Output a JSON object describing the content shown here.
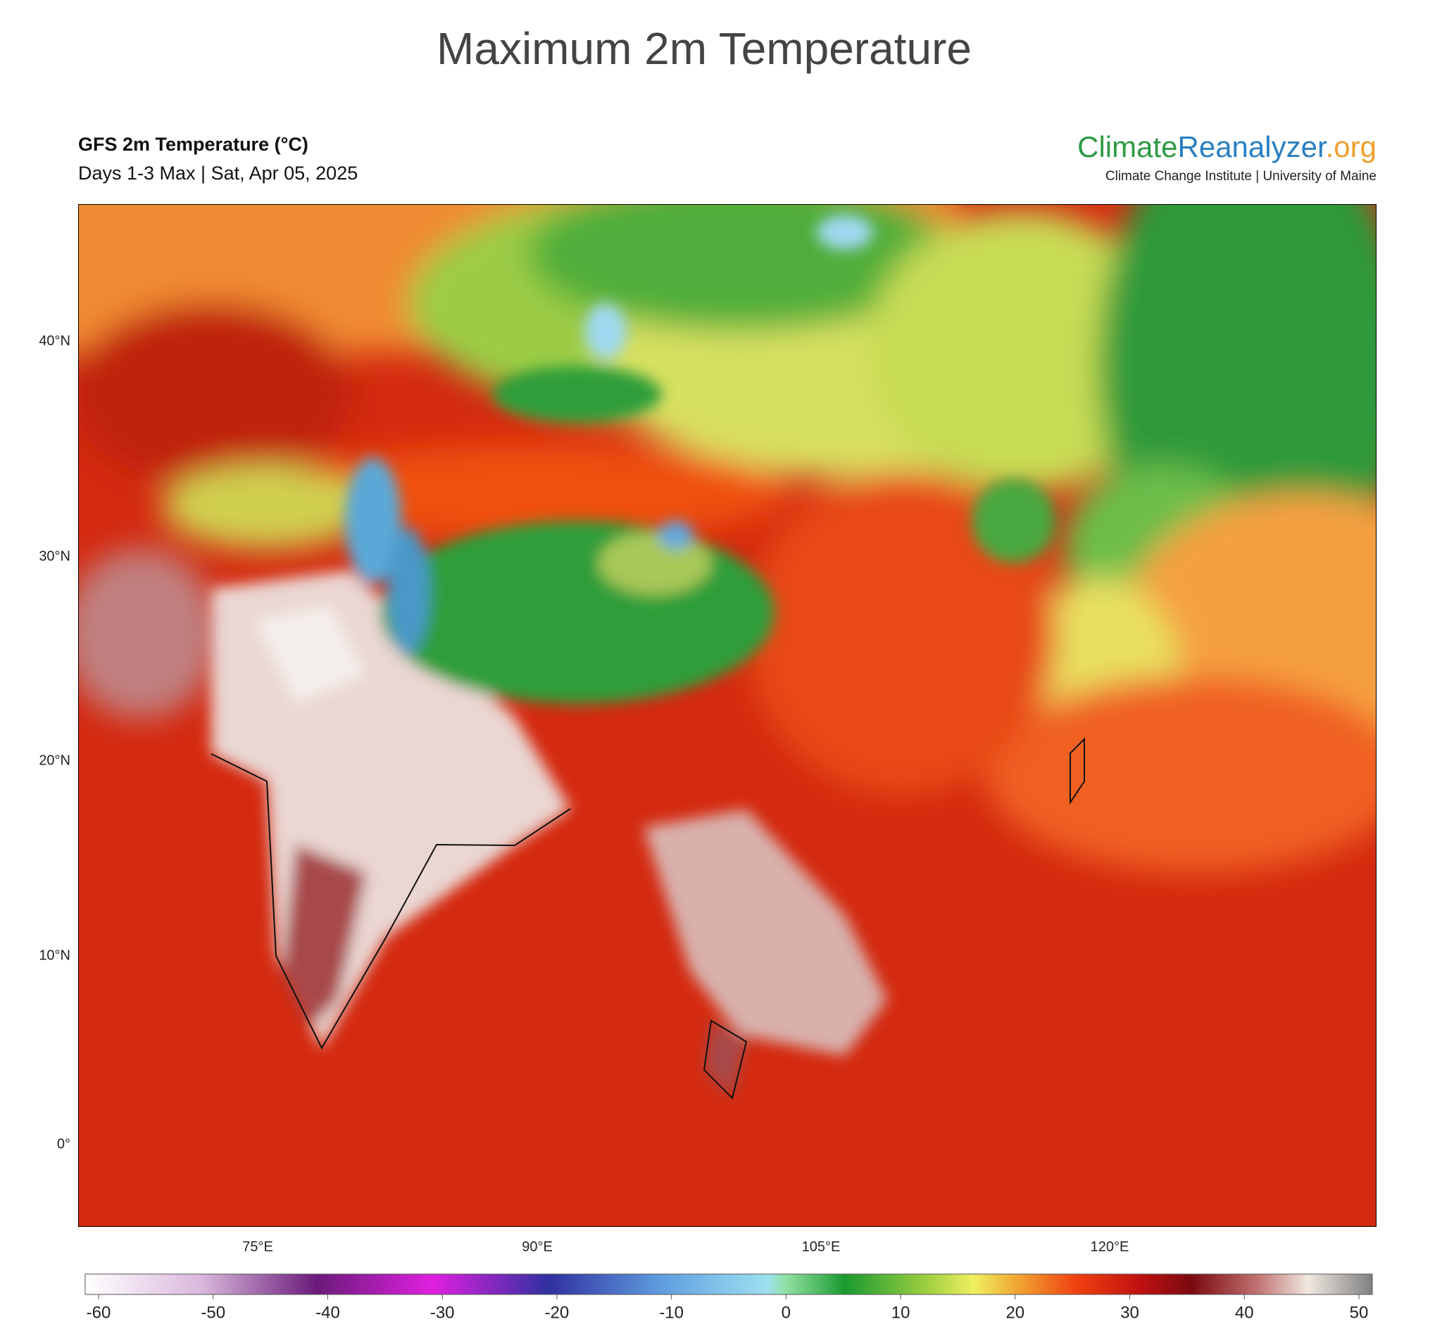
{
  "title": "Maximum 2m Temperature",
  "header": {
    "product": "GFS 2m Temperature (°C)",
    "subtitle": "Days 1-3 Max | Sat, Apr 05, 2025"
  },
  "logo": {
    "climate": "Climate",
    "reanalyzer": "Reanalyzer",
    "org": ".org",
    "tagline": "Climate Change Institute | University of Maine"
  },
  "map": {
    "lat_labels": [
      "40°N",
      "30°N",
      "20°N",
      "10°N",
      "0°"
    ],
    "lon_labels": [
      "75°E",
      "90°E",
      "105°E",
      "120°E"
    ]
  },
  "colorbar": {
    "ticks": [
      -60,
      -50,
      -40,
      -30,
      -20,
      -10,
      0,
      10,
      20,
      30,
      40,
      50
    ]
  }
}
